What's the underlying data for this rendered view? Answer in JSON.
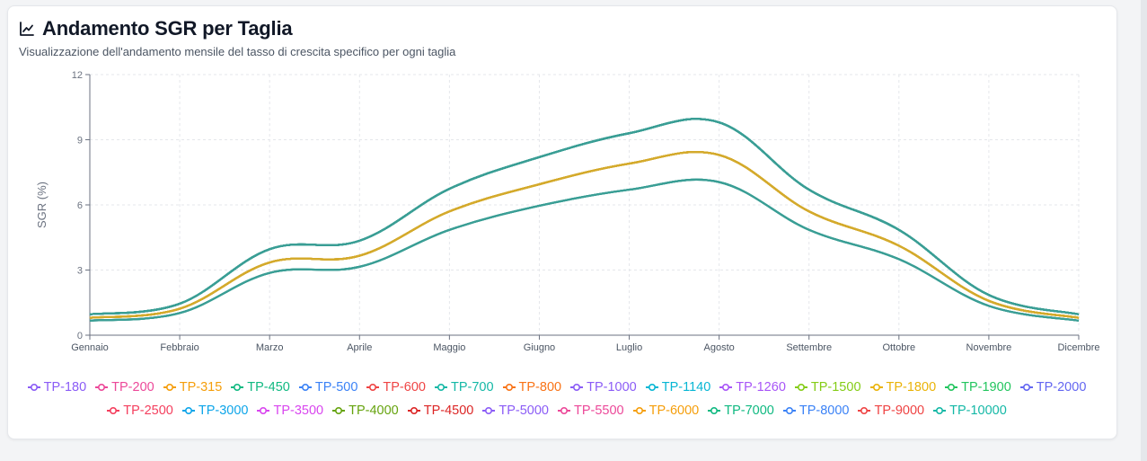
{
  "header": {
    "title": "Andamento SGR per Taglia",
    "subtitle": "Visualizzazione dell'andamento mensile del tasso di crescita specifico per ogni taglia"
  },
  "chart_data": {
    "type": "line",
    "ylabel": "SGR (%)",
    "xlabel": "",
    "ylim": [
      0,
      12
    ],
    "yticks": [
      0,
      3,
      6,
      9,
      12
    ],
    "grid": true,
    "legend_position": "bottom",
    "categories": [
      "Gennaio",
      "Febbraio",
      "Marzo",
      "Aprile",
      "Maggio",
      "Giugno",
      "Luglio",
      "Agosto",
      "Settembre",
      "Ottobre",
      "Novembre",
      "Dicembre"
    ],
    "series": [
      {
        "name": "TP-180",
        "color": "#8b5cf6",
        "values": [
          0.96,
          1.45,
          3.96,
          4.35,
          6.74,
          8.2,
          9.3,
          9.8,
          6.7,
          4.85,
          1.85,
          0.96
        ]
      },
      {
        "name": "TP-200",
        "color": "#ec4899",
        "values": [
          0.96,
          1.45,
          3.96,
          4.35,
          6.74,
          8.2,
          9.3,
          9.8,
          6.7,
          4.85,
          1.85,
          0.96
        ]
      },
      {
        "name": "TP-315",
        "color": "#f59e0b",
        "values": [
          0.96,
          1.45,
          3.96,
          4.35,
          6.74,
          8.2,
          9.3,
          9.8,
          6.7,
          4.85,
          1.85,
          0.96
        ]
      },
      {
        "name": "TP-450",
        "color": "#10b981",
        "values": [
          0.96,
          1.45,
          3.96,
          4.35,
          6.74,
          8.2,
          9.3,
          9.8,
          6.7,
          4.85,
          1.85,
          0.96
        ]
      },
      {
        "name": "TP-500",
        "color": "#3b82f6",
        "values": [
          0.96,
          1.45,
          3.96,
          4.35,
          6.74,
          8.2,
          9.3,
          9.8,
          6.7,
          4.85,
          1.85,
          0.96
        ]
      },
      {
        "name": "TP-600",
        "color": "#ef4444",
        "values": [
          0.96,
          1.45,
          3.96,
          4.35,
          6.74,
          8.2,
          9.3,
          9.8,
          6.7,
          4.85,
          1.85,
          0.96
        ]
      },
      {
        "name": "TP-700",
        "color": "#14b8a6",
        "values": [
          0.96,
          1.45,
          3.96,
          4.35,
          6.74,
          8.2,
          9.3,
          9.8,
          6.7,
          4.85,
          1.85,
          0.96
        ]
      },
      {
        "name": "TP-800",
        "color": "#f97316",
        "values": [
          0.96,
          1.45,
          3.96,
          4.35,
          6.74,
          8.2,
          9.3,
          9.8,
          6.7,
          4.85,
          1.85,
          0.96
        ]
      },
      {
        "name": "TP-1000",
        "color": "#8b5cf6",
        "values": [
          0.96,
          1.45,
          3.96,
          4.35,
          6.74,
          8.2,
          9.3,
          9.8,
          6.7,
          4.85,
          1.85,
          0.96
        ]
      },
      {
        "name": "TP-1140",
        "color": "#06b6d4",
        "values": [
          0.96,
          1.45,
          3.96,
          4.35,
          6.74,
          8.2,
          9.3,
          9.8,
          6.7,
          4.85,
          1.85,
          0.96
        ]
      },
      {
        "name": "TP-1260",
        "color": "#a855f7",
        "values": [
          0.96,
          1.45,
          3.96,
          4.35,
          6.74,
          8.2,
          9.3,
          9.8,
          6.7,
          4.85,
          1.85,
          0.96
        ]
      },
      {
        "name": "TP-1500",
        "color": "#84cc16",
        "values": [
          0.96,
          1.45,
          3.96,
          4.35,
          6.74,
          8.2,
          9.3,
          9.8,
          6.7,
          4.85,
          1.85,
          0.96
        ]
      },
      {
        "name": "TP-1800",
        "color": "#eab308",
        "values": [
          0.8,
          1.22,
          3.35,
          3.66,
          5.7,
          6.95,
          7.9,
          8.3,
          5.7,
          4.12,
          1.58,
          0.8
        ]
      },
      {
        "name": "TP-1900",
        "color": "#22c55e",
        "values": [
          0.8,
          1.22,
          3.35,
          3.66,
          5.7,
          6.95,
          7.9,
          8.3,
          5.7,
          4.12,
          1.58,
          0.8
        ]
      },
      {
        "name": "TP-2000",
        "color": "#6366f1",
        "values": [
          0.8,
          1.22,
          3.35,
          3.66,
          5.7,
          6.95,
          7.9,
          8.3,
          5.7,
          4.12,
          1.58,
          0.8
        ]
      },
      {
        "name": "TP-2500",
        "color": "#f43f5e",
        "values": [
          0.8,
          1.22,
          3.35,
          3.66,
          5.7,
          6.95,
          7.9,
          8.3,
          5.7,
          4.12,
          1.58,
          0.8
        ]
      },
      {
        "name": "TP-3000",
        "color": "#0ea5e9",
        "values": [
          0.8,
          1.22,
          3.35,
          3.66,
          5.7,
          6.95,
          7.9,
          8.3,
          5.7,
          4.12,
          1.58,
          0.8
        ]
      },
      {
        "name": "TP-3500",
        "color": "#d946ef",
        "values": [
          0.8,
          1.22,
          3.35,
          3.66,
          5.7,
          6.95,
          7.9,
          8.3,
          5.7,
          4.12,
          1.58,
          0.8
        ]
      },
      {
        "name": "TP-4000",
        "color": "#65a30d",
        "values": [
          0.8,
          1.22,
          3.35,
          3.66,
          5.7,
          6.95,
          7.9,
          8.3,
          5.7,
          4.12,
          1.58,
          0.8
        ]
      },
      {
        "name": "TP-4500",
        "color": "#dc2626",
        "values": [
          0.8,
          1.22,
          3.35,
          3.66,
          5.7,
          6.95,
          7.9,
          8.3,
          5.7,
          4.12,
          1.58,
          0.8
        ]
      },
      {
        "name": "TP-5000",
        "color": "#8b5cf6",
        "values": [
          0.8,
          1.22,
          3.35,
          3.66,
          5.7,
          6.95,
          7.9,
          8.3,
          5.7,
          4.12,
          1.58,
          0.8
        ]
      },
      {
        "name": "TP-5500",
        "color": "#ec4899",
        "values": [
          0.8,
          1.22,
          3.35,
          3.66,
          5.7,
          6.95,
          7.9,
          8.3,
          5.7,
          4.12,
          1.58,
          0.8
        ]
      },
      {
        "name": "TP-6000",
        "color": "#f59e0b",
        "values": [
          0.8,
          1.22,
          3.35,
          3.66,
          5.7,
          6.95,
          7.9,
          8.3,
          5.7,
          4.12,
          1.58,
          0.8
        ]
      },
      {
        "name": "TP-7000",
        "color": "#10b981",
        "values": [
          0.67,
          1.02,
          2.87,
          3.15,
          4.85,
          5.96,
          6.7,
          7.05,
          4.85,
          3.5,
          1.35,
          0.67
        ]
      },
      {
        "name": "TP-8000",
        "color": "#3b82f6",
        "values": [
          0.67,
          1.02,
          2.87,
          3.15,
          4.85,
          5.96,
          6.7,
          7.05,
          4.85,
          3.5,
          1.35,
          0.67
        ]
      },
      {
        "name": "TP-9000",
        "color": "#ef4444",
        "values": [
          0.67,
          1.02,
          2.87,
          3.15,
          4.85,
          5.96,
          6.7,
          7.05,
          4.85,
          3.5,
          1.35,
          0.67
        ]
      },
      {
        "name": "TP-10000",
        "color": "#14b8a6",
        "values": [
          0.67,
          1.02,
          2.87,
          3.15,
          4.85,
          5.96,
          6.7,
          7.05,
          4.85,
          3.5,
          1.35,
          0.67
        ]
      }
    ]
  },
  "colors": {
    "axis": "#6b7280",
    "grid": "#e5e7eb",
    "top_line": "#3a9e95",
    "mid_line": "#d4aa2c",
    "bottom_line": "#3a9e95"
  }
}
